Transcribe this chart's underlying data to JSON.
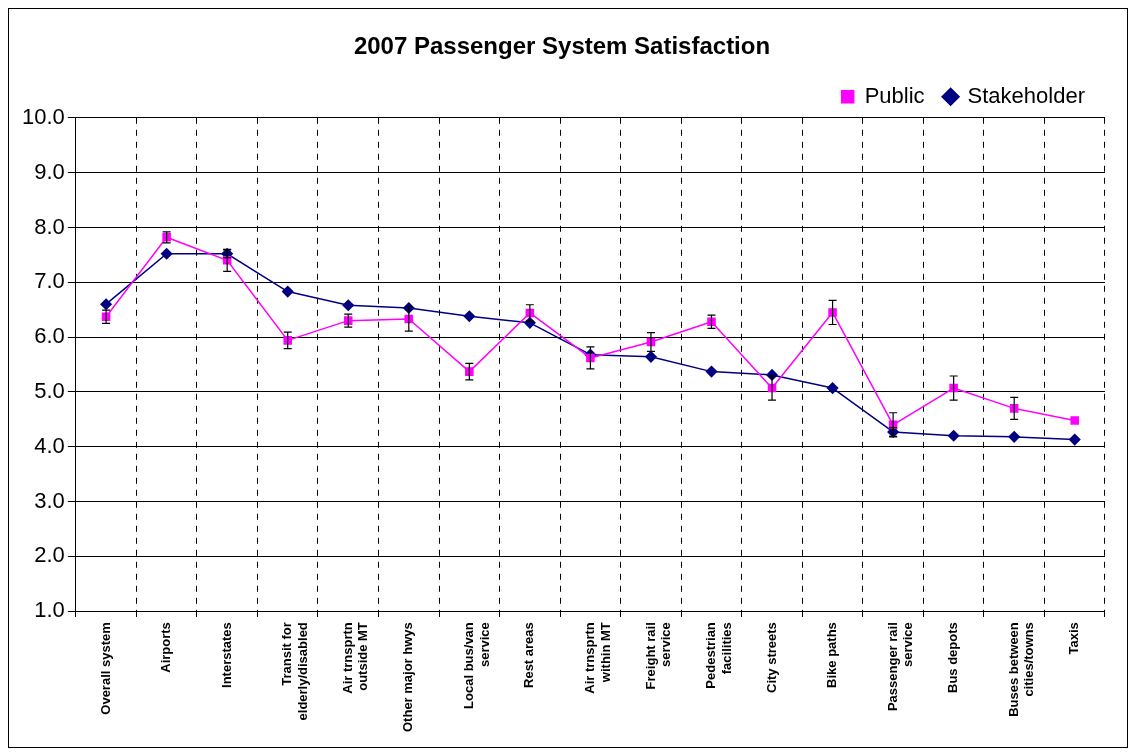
{
  "chart_data": {
    "type": "line",
    "title": "2007 Passenger System Satisfaction",
    "categories": [
      "Overall system",
      "Airports",
      "Interstates",
      "Transit for elderly/disabled",
      "Air trnsprtn outside MT",
      "Other major hwys",
      "Local bus/van service",
      "Rest areas",
      "Air trnsprtn within MT",
      "Freight rail service",
      "Pedestrian facilities",
      "City streets",
      "Bike paths",
      "Passenger rail service",
      "Bus depots",
      "Buses between cities/towns",
      "Taxis"
    ],
    "series": [
      {
        "name": "Stakeholder",
        "color": "#000080",
        "marker": "diamond",
        "values": [
          6.6,
          7.52,
          7.52,
          6.83,
          6.58,
          6.53,
          6.38,
          6.26,
          5.68,
          5.64,
          5.37,
          5.31,
          5.07,
          4.27,
          4.2,
          4.18,
          4.13
        ],
        "errors": [
          null,
          null,
          0.07,
          null,
          null,
          null,
          null,
          null,
          null,
          null,
          null,
          null,
          null,
          0.08,
          null,
          null,
          null
        ]
      },
      {
        "name": "Public",
        "color": "#ff00ff",
        "marker": "square",
        "values": [
          6.37,
          7.82,
          7.4,
          5.94,
          6.3,
          6.33,
          5.37,
          6.44,
          5.62,
          5.91,
          6.28,
          5.07,
          6.45,
          4.4,
          5.07,
          4.7,
          4.48
        ],
        "errors": [
          0.12,
          0.1,
          0.2,
          0.15,
          0.12,
          0.22,
          0.15,
          0.15,
          0.2,
          0.17,
          0.12,
          0.22,
          0.22,
          0.22,
          0.22,
          0.2,
          null
        ]
      }
    ],
    "ylim": [
      1,
      10
    ],
    "yticks": [
      {
        "value": 1,
        "label": "1.0"
      },
      {
        "value": 2,
        "label": "2.0"
      },
      {
        "value": 3,
        "label": "3.0"
      },
      {
        "value": 4,
        "label": "4.0"
      },
      {
        "value": 5,
        "label": "5.0"
      },
      {
        "value": 6,
        "label": "6.0"
      },
      {
        "value": 7,
        "label": "7.0"
      },
      {
        "value": 8,
        "label": "8.0"
      },
      {
        "value": 9,
        "label": "9.0"
      },
      {
        "value": 10,
        "label": "10.0"
      }
    ],
    "grid": true,
    "legend": "top right",
    "line_style": "solid"
  }
}
